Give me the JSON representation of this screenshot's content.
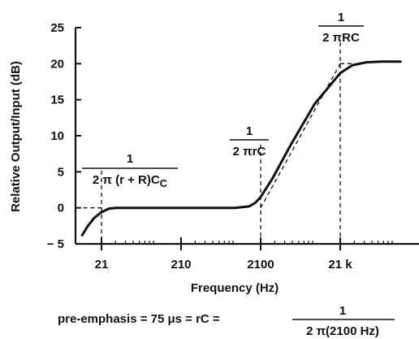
{
  "chart_data": {
    "type": "line",
    "xlabel": "Frequency (Hz)",
    "ylabel": "Relative Output/Input (dB)",
    "x_scale": "log",
    "xlim": [
      10,
      120000
    ],
    "ylim": [
      -5,
      25
    ],
    "x_ticks": [
      21,
      210,
      2100,
      21000
    ],
    "x_tick_labels": [
      "21",
      "210",
      "2100",
      "21 k"
    ],
    "y_ticks": [
      -5,
      0,
      5,
      10,
      15,
      20,
      25
    ],
    "y_tick_labels": [
      "− 5",
      "0",
      "5",
      "10",
      "15",
      "20",
      "25"
    ],
    "grid": false,
    "series": [
      {
        "x": [
          12,
          14,
          17,
          21,
          26,
          32,
          40,
          50,
          70,
          100,
          300,
          1000,
          1500,
          1800,
          2100,
          3000,
          5000,
          10000,
          21000,
          30000,
          45000,
          70000,
          120000
        ],
        "y": [
          -3.8,
          -2.6,
          -1.4,
          -0.6,
          -0.1,
          0.0,
          0.0,
          0.0,
          0.0,
          0.0,
          0.0,
          0.0,
          0.2,
          0.7,
          1.5,
          4.2,
          8.7,
          14.4,
          18.7,
          19.8,
          20.2,
          20.3,
          20.3
        ]
      }
    ],
    "asymptotes": [
      {
        "x": [
          10,
          21
        ],
        "y": [
          0,
          0
        ]
      },
      {
        "x": [
          2100,
          21000
        ],
        "y": [
          0,
          20
        ]
      },
      {
        "x": [
          21000,
          30000
        ],
        "y": [
          20,
          20
        ]
      }
    ],
    "markers": [
      21,
      2100,
      21000
    ],
    "annotations": [
      {
        "numerator": "1",
        "denominator": "2 π (r + R)C",
        "subscript": "C",
        "at_x": 21
      },
      {
        "numerator": "1",
        "denominator": "2 πrC",
        "at_x": 2100
      },
      {
        "numerator": "1",
        "denominator": "2 πRC",
        "at_x": 21000
      }
    ],
    "footer": {
      "lhs": "pre-emphasis = 75 μs  =  rC  =",
      "numerator": "1",
      "denominator": "2 π(2100 Hz)"
    }
  }
}
